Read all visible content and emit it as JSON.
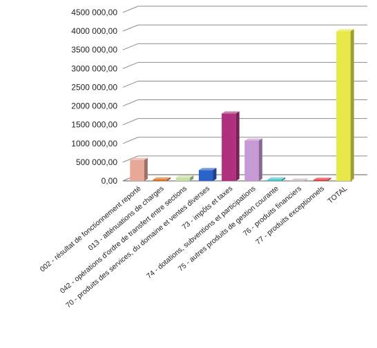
{
  "chart_data": {
    "type": "bar",
    "title": "",
    "xlabel": "",
    "ylabel": "",
    "ylim": [
      0,
      4500000
    ],
    "yticks": [
      0,
      500000,
      1000000,
      1500000,
      2000000,
      2500000,
      3000000,
      3500000,
      4000000,
      4500000
    ],
    "ytick_labels": [
      "0,00",
      "500 000,00",
      "1000 000,00",
      "1500 000,00",
      "2000 000,00",
      "2500 000,00",
      "3000 000,00",
      "3500 000,00",
      "4000 000,00",
      "4500 000,00"
    ],
    "grid": true,
    "legend": "none",
    "categories": [
      "002 - résultat de fonctionnement reporté",
      "013 - atténuations de charges",
      "042 - opérations d'ordre de transfert entre sections",
      "70 - produits des services, du domaine et ventes diverses",
      "73 - impôts et taxes",
      "74 - dotations, subventions et participations",
      "75 - autres produits de gestion courante",
      "76 - produits financiers",
      "77 - produits exceptionnels",
      "TOTAL"
    ],
    "values": [
      560000,
      40000,
      90000,
      290000,
      1800000,
      1080000,
      40000,
      10000,
      30000,
      4000000
    ],
    "colors": [
      "#e8a898",
      "#e06a1a",
      "#c6e0a0",
      "#2a62c8",
      "#b03080",
      "#c79ad6",
      "#3ec4cc",
      "#c8b0b0",
      "#e03030",
      "#e8e84a"
    ]
  }
}
